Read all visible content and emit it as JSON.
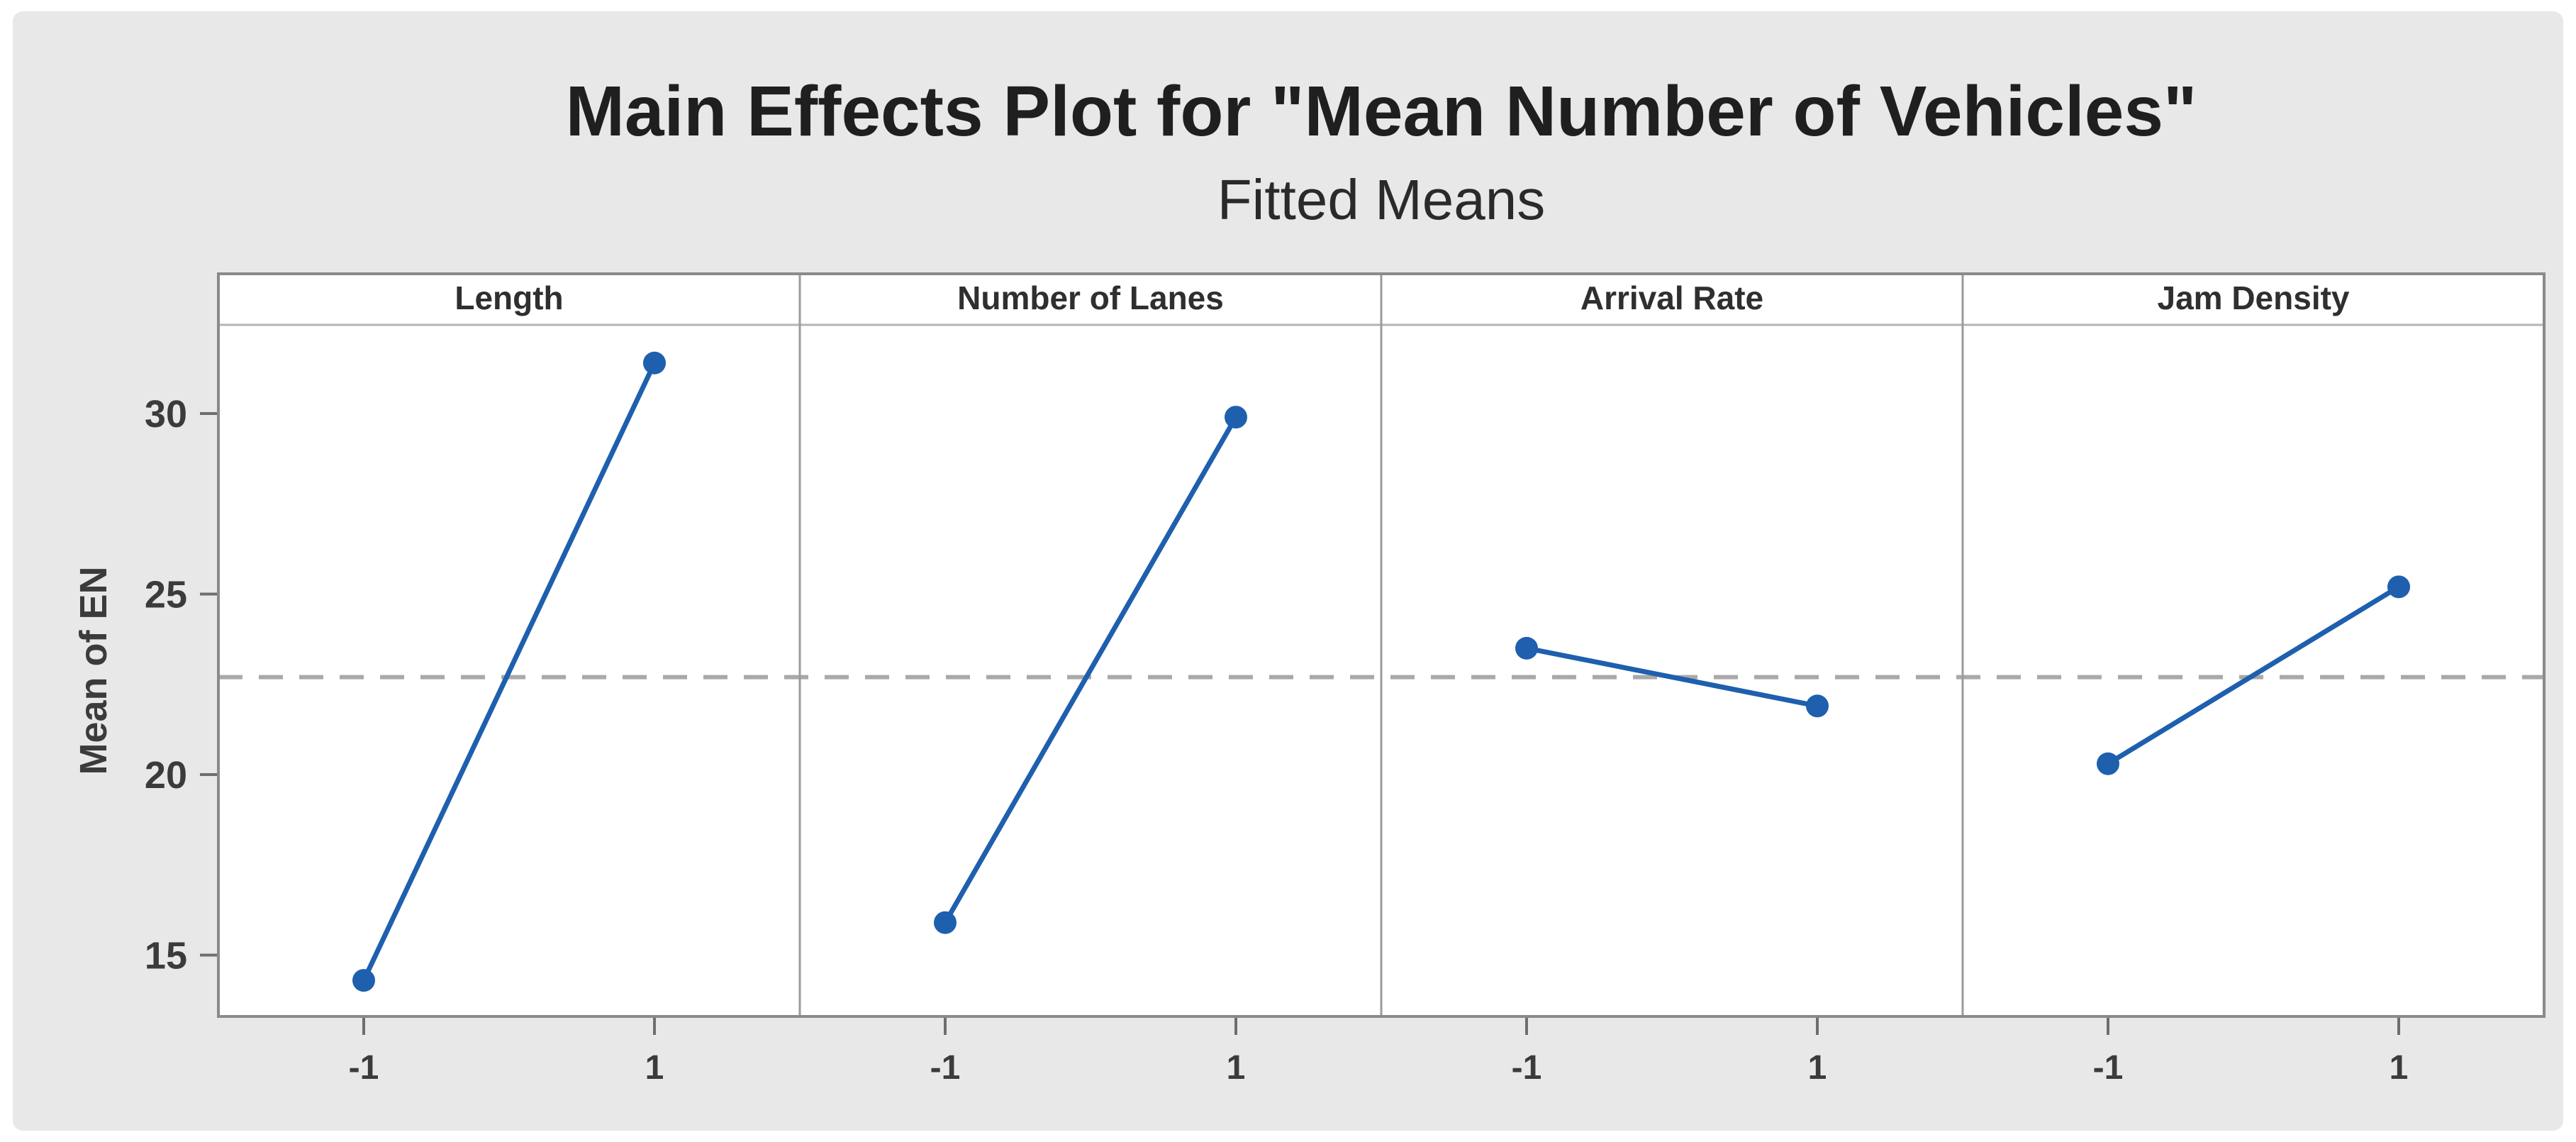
{
  "title": "Main Effects Plot for \"Mean Number of Vehicles\"",
  "subtitle": "Fitted Means",
  "y_axis": {
    "label": "Mean of EN",
    "ticks": [
      "15",
      "20",
      "25",
      "30"
    ]
  },
  "x_axis": {
    "tick_labels": [
      "-1",
      "1"
    ]
  },
  "colors": {
    "figure_background": "#e8e8e8",
    "panel_background": "#ffffff",
    "series_blue": "#1e5fae",
    "reference_line_gray": "#a9a9a9",
    "border_gray": "#8a8a8a",
    "divider_gray": "#9b9b9b",
    "header_separator_gray": "#b5b5b5",
    "tick_text": "#3b3b3b",
    "title_text": "#1f1f1f"
  },
  "chart_data": {
    "type": "line",
    "title": "Main Effects Plot for \"Mean Number of Vehicles\"",
    "subtitle": "Fitted Means",
    "ylabel": "Mean of EN",
    "categories": [
      "-1",
      "1"
    ],
    "panels": [
      {
        "label": "Length",
        "values": [
          14.3,
          31.4
        ]
      },
      {
        "label": "Number of Lanes",
        "values": [
          15.9,
          29.9
        ]
      },
      {
        "label": "Arrival Rate",
        "values": [
          23.5,
          21.9
        ]
      },
      {
        "label": "Jam Density",
        "values": [
          20.3,
          25.2
        ]
      }
    ],
    "reference_line_mean": 22.7,
    "yticks": [
      15,
      20,
      25,
      30
    ],
    "ylim": [
      13.3,
      32.4
    ],
    "grid": "off",
    "legend": "none",
    "marker": "filled-circle",
    "reference_line_style": "dashed"
  }
}
